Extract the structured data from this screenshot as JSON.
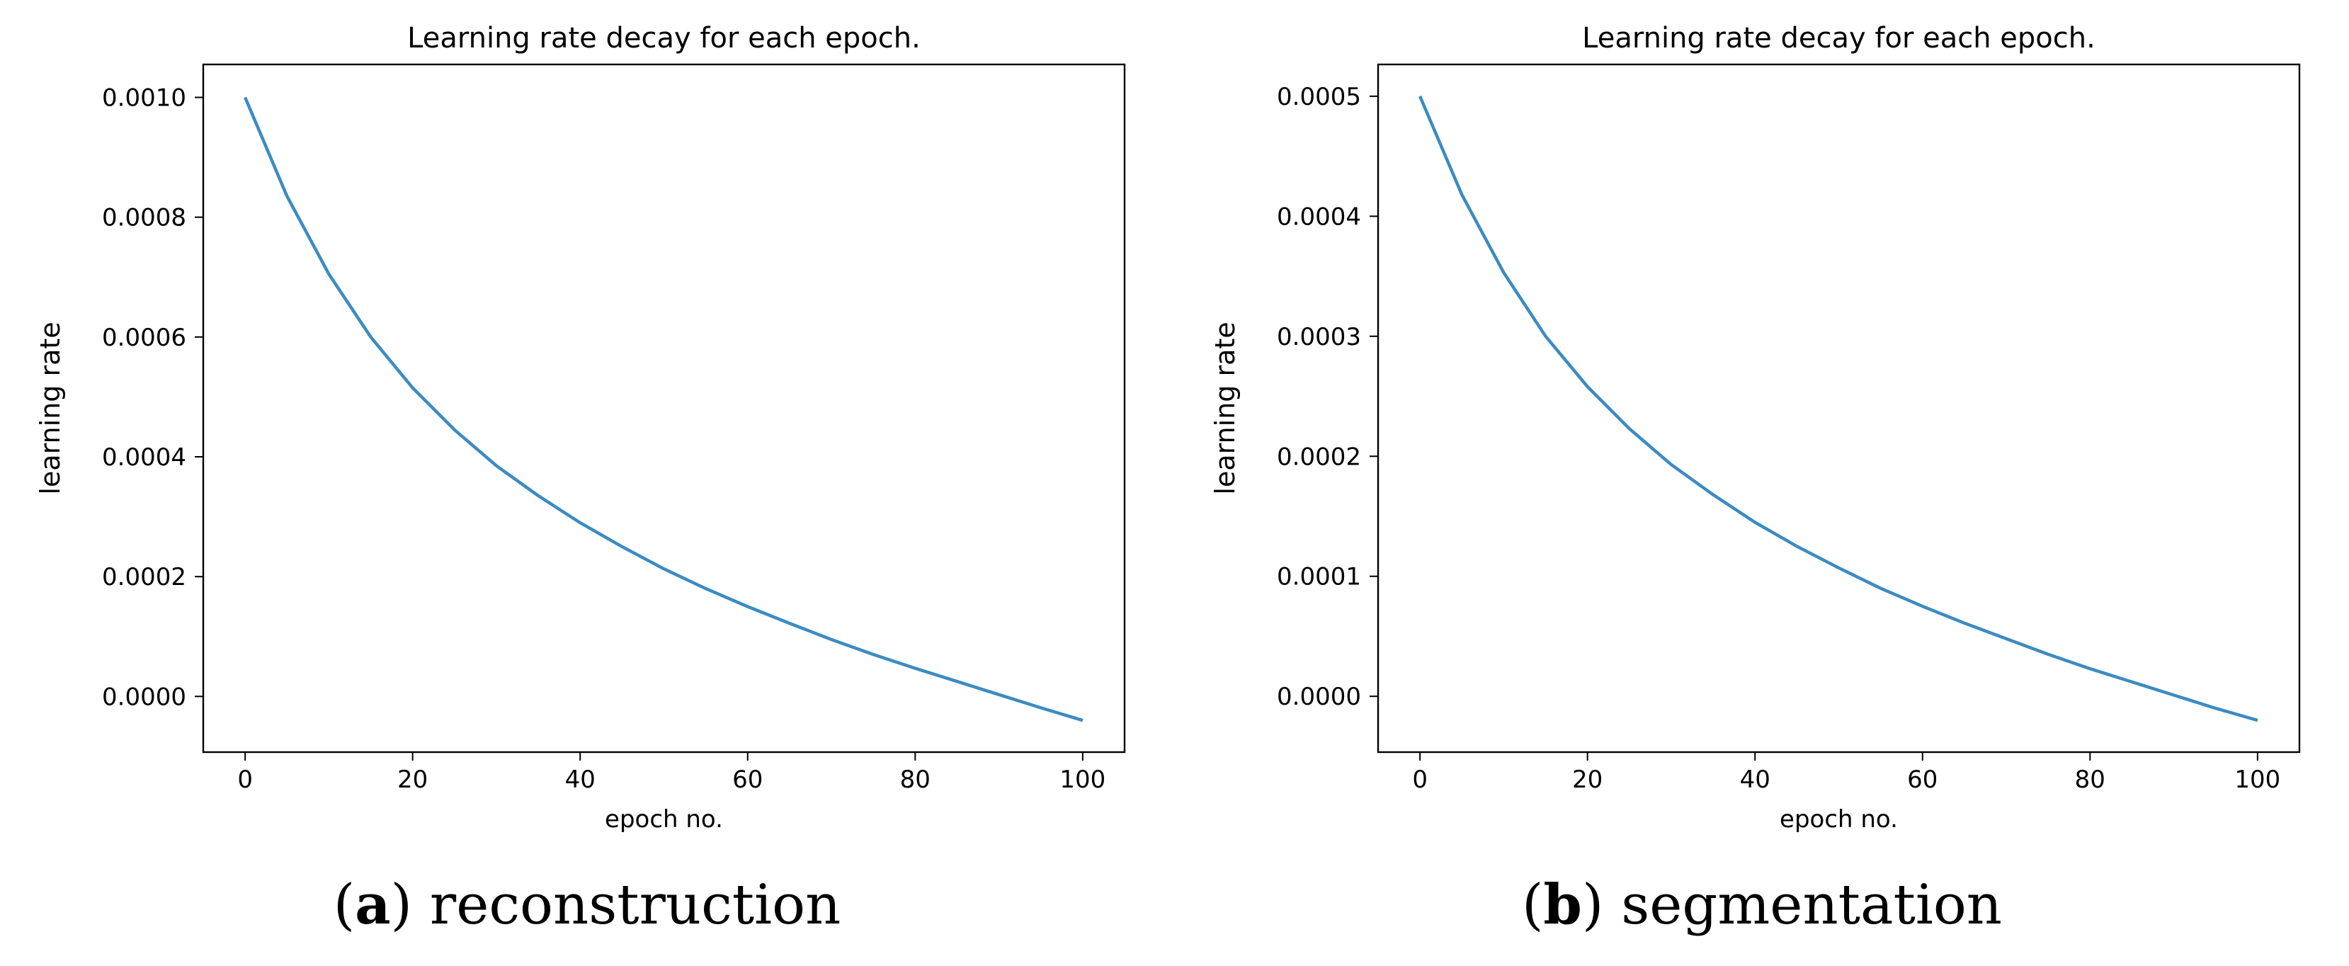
{
  "chart_data": [
    {
      "type": "line",
      "title": "Learning rate decay for each epoch.",
      "xlabel": "epoch no.",
      "ylabel": "learning rate",
      "xlim": [
        -5,
        105
      ],
      "ylim": [
        -9.3e-05,
        0.001055
      ],
      "xticks": [
        0,
        20,
        40,
        60,
        80,
        100
      ],
      "yticks": [
        0.0,
        0.0002,
        0.0004,
        0.0006,
        0.0008,
        0.001
      ],
      "ytick_labels": [
        "0.0000",
        "0.0002",
        "0.0004",
        "0.0006",
        "0.0008",
        "0.0010"
      ],
      "grid": false,
      "color": "#3b8bc2",
      "series": [
        {
          "x": [
            0,
            5,
            10,
            15,
            20,
            25,
            30,
            35,
            40,
            45,
            50,
            55,
            60,
            65,
            70,
            75,
            80,
            85,
            90,
            95,
            100
          ],
          "y": [
            0.001,
            0.000835,
            0.000705,
            0.0006,
            0.000515,
            0.000445,
            0.000385,
            0.000335,
            0.00029,
            0.00025,
            0.000213,
            0.00018,
            0.00015,
            0.000122,
            9.5e-05,
            7e-05,
            4.7e-05,
            2.5e-05,
            3e-06,
            -1.9e-05,
            -4e-05
          ]
        }
      ],
      "caption_letter": "a",
      "caption_text": "reconstruction"
    },
    {
      "type": "line",
      "title": "Learning rate decay for each epoch.",
      "xlabel": "epoch no.",
      "ylabel": "learning rate",
      "xlim": [
        -5,
        105
      ],
      "ylim": [
        -4.65e-05,
        0.0005265
      ],
      "xticks": [
        0,
        20,
        40,
        60,
        80,
        100
      ],
      "yticks": [
        0.0,
        0.0001,
        0.0002,
        0.0003,
        0.0004,
        0.0005
      ],
      "ytick_labels": [
        "0.0000",
        "0.0001",
        "0.0002",
        "0.0003",
        "0.0004",
        "0.0005"
      ],
      "grid": false,
      "color": "#3b8bc2",
      "series": [
        {
          "x": [
            0,
            5,
            10,
            15,
            20,
            25,
            30,
            35,
            40,
            45,
            50,
            55,
            60,
            65,
            70,
            75,
            80,
            85,
            90,
            95,
            100
          ],
          "y": [
            0.0005,
            0.000418,
            0.000353,
            0.0003,
            0.000258,
            0.000223,
            0.000193,
            0.000168,
            0.000145,
            0.000125,
            0.000107,
            9e-05,
            7.5e-05,
            6.1e-05,
            4.8e-05,
            3.5e-05,
            2.3e-05,
            1.2e-05,
            1e-06,
            -1e-05,
            -2e-05
          ]
        }
      ],
      "caption_letter": "b",
      "caption_text": "segmentation"
    }
  ]
}
